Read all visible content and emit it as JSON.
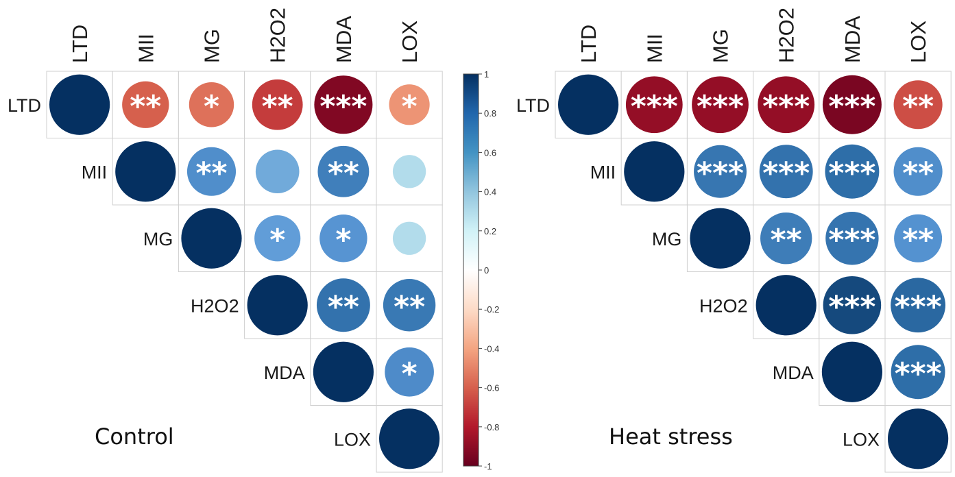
{
  "variables": [
    "LTD",
    "MII",
    "MG",
    "H2O2",
    "MDA",
    "LOX"
  ],
  "colorbar": {
    "ticks": [
      "1",
      "0.8",
      "0.6",
      "0.4",
      "0.2",
      "0",
      "-0.2",
      "-0.4",
      "-0.6",
      "-0.8",
      "-1"
    ],
    "range": [
      -1,
      1
    ],
    "colors": {
      "negative_end": "#67001f",
      "positive_end": "#053061",
      "mid": "#ffffff"
    }
  },
  "chart_data": [
    {
      "type": "heatmap",
      "title": "Control",
      "variables": [
        "LTD",
        "MII",
        "MG",
        "H2O2",
        "MDA",
        "LOX"
      ],
      "cells": [
        {
          "row": "LTD",
          "col": "LTD",
          "r": 1.0,
          "sig": ""
        },
        {
          "row": "LTD",
          "col": "MII",
          "r": -0.6,
          "sig": "**"
        },
        {
          "row": "LTD",
          "col": "MG",
          "r": -0.55,
          "sig": "*"
        },
        {
          "row": "LTD",
          "col": "H2O2",
          "r": -0.7,
          "sig": "**"
        },
        {
          "row": "LTD",
          "col": "MDA",
          "r": -0.93,
          "sig": "***"
        },
        {
          "row": "LTD",
          "col": "LOX",
          "r": -0.45,
          "sig": "*"
        },
        {
          "row": "MII",
          "col": "MII",
          "r": 1.0,
          "sig": ""
        },
        {
          "row": "MII",
          "col": "MG",
          "r": 0.65,
          "sig": "**"
        },
        {
          "row": "MII",
          "col": "H2O2",
          "r": 0.52,
          "sig": ""
        },
        {
          "row": "MII",
          "col": "MDA",
          "r": 0.72,
          "sig": "**"
        },
        {
          "row": "MII",
          "col": "LOX",
          "r": 0.3,
          "sig": ""
        },
        {
          "row": "MG",
          "col": "MG",
          "r": 1.0,
          "sig": ""
        },
        {
          "row": "MG",
          "col": "H2O2",
          "r": 0.58,
          "sig": "*"
        },
        {
          "row": "MG",
          "col": "MDA",
          "r": 0.62,
          "sig": "*"
        },
        {
          "row": "MG",
          "col": "LOX",
          "r": 0.3,
          "sig": ""
        },
        {
          "row": "H2O2",
          "col": "H2O2",
          "r": 1.0,
          "sig": ""
        },
        {
          "row": "H2O2",
          "col": "MDA",
          "r": 0.78,
          "sig": "**"
        },
        {
          "row": "H2O2",
          "col": "LOX",
          "r": 0.75,
          "sig": "**"
        },
        {
          "row": "MDA",
          "col": "MDA",
          "r": 1.0,
          "sig": ""
        },
        {
          "row": "MDA",
          "col": "LOX",
          "r": 0.66,
          "sig": "*"
        },
        {
          "row": "LOX",
          "col": "LOX",
          "r": 1.0,
          "sig": ""
        }
      ]
    },
    {
      "type": "heatmap",
      "title": "Heat stress",
      "variables": [
        "LTD",
        "MII",
        "MG",
        "H2O2",
        "MDA",
        "LOX"
      ],
      "cells": [
        {
          "row": "LTD",
          "col": "LTD",
          "r": 1.0,
          "sig": ""
        },
        {
          "row": "LTD",
          "col": "MII",
          "r": -0.88,
          "sig": "***"
        },
        {
          "row": "LTD",
          "col": "MG",
          "r": -0.88,
          "sig": "***"
        },
        {
          "row": "LTD",
          "col": "H2O2",
          "r": -0.88,
          "sig": "***"
        },
        {
          "row": "LTD",
          "col": "MDA",
          "r": -0.95,
          "sig": "***"
        },
        {
          "row": "LTD",
          "col": "LOX",
          "r": -0.65,
          "sig": "**"
        },
        {
          "row": "MII",
          "col": "MII",
          "r": 1.0,
          "sig": ""
        },
        {
          "row": "MII",
          "col": "MG",
          "r": 0.76,
          "sig": "***"
        },
        {
          "row": "MII",
          "col": "H2O2",
          "r": 0.78,
          "sig": "***"
        },
        {
          "row": "MII",
          "col": "MDA",
          "r": 0.8,
          "sig": "***"
        },
        {
          "row": "MII",
          "col": "LOX",
          "r": 0.65,
          "sig": "**"
        },
        {
          "row": "MG",
          "col": "MG",
          "r": 1.0,
          "sig": ""
        },
        {
          "row": "MG",
          "col": "H2O2",
          "r": 0.73,
          "sig": "**"
        },
        {
          "row": "MG",
          "col": "MDA",
          "r": 0.77,
          "sig": "***"
        },
        {
          "row": "MG",
          "col": "LOX",
          "r": 0.63,
          "sig": "**"
        },
        {
          "row": "H2O2",
          "col": "H2O2",
          "r": 1.0,
          "sig": ""
        },
        {
          "row": "H2O2",
          "col": "MDA",
          "r": 0.92,
          "sig": "***"
        },
        {
          "row": "H2O2",
          "col": "LOX",
          "r": 0.82,
          "sig": "***"
        },
        {
          "row": "MDA",
          "col": "MDA",
          "r": 1.0,
          "sig": ""
        },
        {
          "row": "MDA",
          "col": "LOX",
          "r": 0.8,
          "sig": "***"
        },
        {
          "row": "LOX",
          "col": "LOX",
          "r": 1.0,
          "sig": ""
        }
      ]
    }
  ]
}
